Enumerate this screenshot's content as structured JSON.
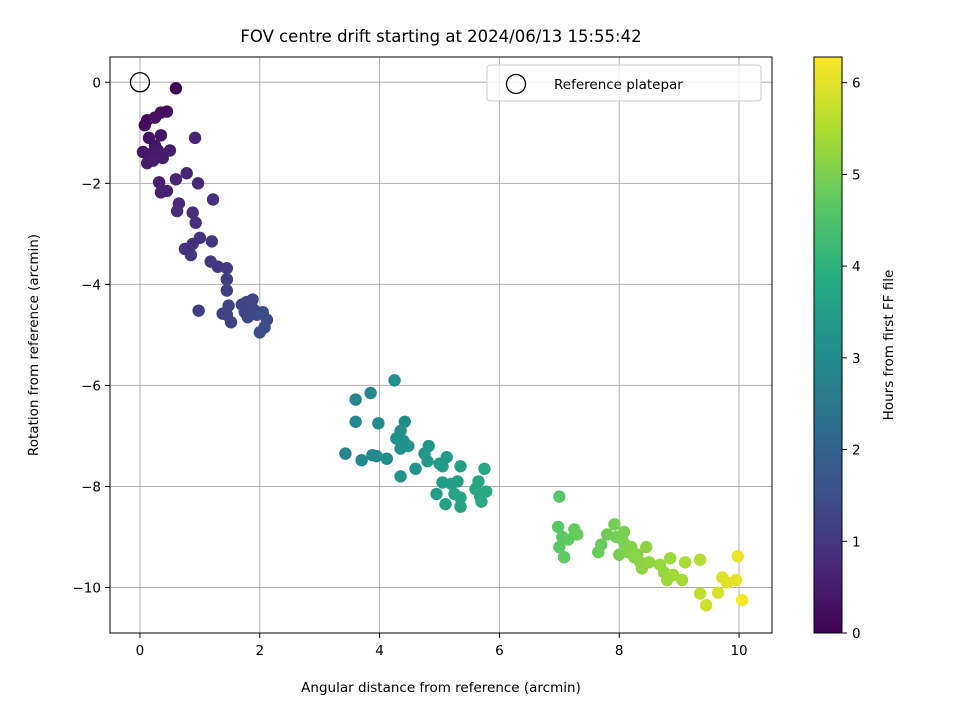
{
  "chart_data": {
    "type": "scatter",
    "title": "FOV centre drift starting at 2024/06/13 15:55:42",
    "xlabel": "Angular distance from reference (arcmin)",
    "ylabel": "Rotation from reference (arcmin)",
    "xlim": [
      -0.5,
      10.55
    ],
    "ylim": [
      -10.9,
      0.5
    ],
    "xticks": [
      0,
      2,
      4,
      6,
      8,
      10
    ],
    "yticks": [
      0,
      -2,
      -4,
      -6,
      -8,
      -10
    ],
    "grid": true,
    "legend": {
      "placement": "top-right",
      "entries": [
        "Reference platepar"
      ]
    },
    "reference_point": {
      "x": 0,
      "y": 0,
      "label": "Reference platepar"
    },
    "colorbar": {
      "label": "Hours from first FF file",
      "range": [
        0,
        6.28
      ],
      "ticks": [
        0,
        1,
        2,
        3,
        4,
        5,
        6
      ],
      "colormap": "viridis"
    },
    "points": [
      {
        "x": 0.6,
        "y": -0.12,
        "c": 0.05
      },
      {
        "x": 0.12,
        "y": -0.75,
        "c": 0.1
      },
      {
        "x": 0.08,
        "y": -0.85,
        "c": 0.15
      },
      {
        "x": 0.35,
        "y": -0.6,
        "c": 0.2
      },
      {
        "x": 0.25,
        "y": -0.7,
        "c": 0.22
      },
      {
        "x": 0.45,
        "y": -0.58,
        "c": 0.25
      },
      {
        "x": 0.15,
        "y": -1.1,
        "c": 0.3
      },
      {
        "x": 0.35,
        "y": -1.05,
        "c": 0.33
      },
      {
        "x": 0.25,
        "y": -1.25,
        "c": 0.35
      },
      {
        "x": 0.05,
        "y": -1.38,
        "c": 0.38
      },
      {
        "x": 0.18,
        "y": -1.42,
        "c": 0.4
      },
      {
        "x": 0.3,
        "y": -1.35,
        "c": 0.42
      },
      {
        "x": 0.12,
        "y": -1.6,
        "c": 0.45
      },
      {
        "x": 0.22,
        "y": -1.55,
        "c": 0.47
      },
      {
        "x": 0.38,
        "y": -1.5,
        "c": 0.5
      },
      {
        "x": 0.5,
        "y": -1.35,
        "c": 0.52
      },
      {
        "x": 0.32,
        "y": -1.98,
        "c": 0.55
      },
      {
        "x": 0.35,
        "y": -2.18,
        "c": 0.58
      },
      {
        "x": 0.45,
        "y": -2.15,
        "c": 0.6
      },
      {
        "x": 0.6,
        "y": -1.92,
        "c": 0.62
      },
      {
        "x": 0.92,
        "y": -1.1,
        "c": 0.65
      },
      {
        "x": 0.78,
        "y": -1.8,
        "c": 0.7
      },
      {
        "x": 0.97,
        "y": -2.0,
        "c": 0.72
      },
      {
        "x": 0.65,
        "y": -2.4,
        "c": 0.75
      },
      {
        "x": 0.62,
        "y": -2.55,
        "c": 0.78
      },
      {
        "x": 0.88,
        "y": -2.58,
        "c": 0.8
      },
      {
        "x": 1.22,
        "y": -2.32,
        "c": 0.82
      },
      {
        "x": 0.93,
        "y": -2.78,
        "c": 0.85
      },
      {
        "x": 0.75,
        "y": -3.3,
        "c": 0.88
      },
      {
        "x": 0.88,
        "y": -3.2,
        "c": 0.9
      },
      {
        "x": 1.0,
        "y": -3.08,
        "c": 0.92
      },
      {
        "x": 0.85,
        "y": -3.42,
        "c": 0.95
      },
      {
        "x": 1.2,
        "y": -3.15,
        "c": 0.98
      },
      {
        "x": 1.18,
        "y": -3.55,
        "c": 1.0
      },
      {
        "x": 1.3,
        "y": -3.65,
        "c": 1.02
      },
      {
        "x": 1.45,
        "y": -3.68,
        "c": 1.05
      },
      {
        "x": 1.45,
        "y": -3.9,
        "c": 1.08
      },
      {
        "x": 1.45,
        "y": -4.12,
        "c": 1.1
      },
      {
        "x": 0.98,
        "y": -4.52,
        "c": 1.12
      },
      {
        "x": 1.38,
        "y": -4.58,
        "c": 1.15
      },
      {
        "x": 1.48,
        "y": -4.42,
        "c": 1.18
      },
      {
        "x": 1.45,
        "y": -4.6,
        "c": 1.2
      },
      {
        "x": 1.52,
        "y": -4.75,
        "c": 1.22
      },
      {
        "x": 1.7,
        "y": -4.4,
        "c": 1.25
      },
      {
        "x": 1.78,
        "y": -4.35,
        "c": 1.28
      },
      {
        "x": 1.88,
        "y": -4.3,
        "c": 1.3
      },
      {
        "x": 1.75,
        "y": -4.55,
        "c": 1.32
      },
      {
        "x": 1.9,
        "y": -4.5,
        "c": 1.35
      },
      {
        "x": 1.8,
        "y": -4.65,
        "c": 1.38
      },
      {
        "x": 1.95,
        "y": -4.6,
        "c": 1.4
      },
      {
        "x": 2.05,
        "y": -4.55,
        "c": 1.42
      },
      {
        "x": 2.12,
        "y": -4.7,
        "c": 1.45
      },
      {
        "x": 2.08,
        "y": -4.85,
        "c": 1.48
      },
      {
        "x": 2.0,
        "y": -4.95,
        "c": 1.5
      },
      {
        "x": 3.43,
        "y": -7.35,
        "c": 2.8
      },
      {
        "x": 3.6,
        "y": -6.28,
        "c": 2.85
      },
      {
        "x": 3.6,
        "y": -6.72,
        "c": 2.88
      },
      {
        "x": 3.85,
        "y": -6.15,
        "c": 2.9
      },
      {
        "x": 3.7,
        "y": -7.48,
        "c": 2.92
      },
      {
        "x": 3.88,
        "y": -7.38,
        "c": 2.95
      },
      {
        "x": 3.95,
        "y": -7.4,
        "c": 2.98
      },
      {
        "x": 3.98,
        "y": -6.75,
        "c": 3.0
      },
      {
        "x": 4.12,
        "y": -7.45,
        "c": 3.02
      },
      {
        "x": 4.25,
        "y": -5.9,
        "c": 3.05
      },
      {
        "x": 4.42,
        "y": -6.72,
        "c": 3.08
      },
      {
        "x": 4.35,
        "y": -6.9,
        "c": 3.1
      },
      {
        "x": 4.28,
        "y": -7.05,
        "c": 3.12
      },
      {
        "x": 4.4,
        "y": -7.1,
        "c": 3.15
      },
      {
        "x": 4.35,
        "y": -7.25,
        "c": 3.18
      },
      {
        "x": 4.48,
        "y": -7.2,
        "c": 3.2
      },
      {
        "x": 4.35,
        "y": -7.8,
        "c": 3.22
      },
      {
        "x": 4.6,
        "y": -7.65,
        "c": 3.25
      },
      {
        "x": 4.75,
        "y": -7.35,
        "c": 3.3
      },
      {
        "x": 4.82,
        "y": -7.2,
        "c": 3.32
      },
      {
        "x": 4.8,
        "y": -7.5,
        "c": 3.35
      },
      {
        "x": 5.0,
        "y": -7.55,
        "c": 3.38
      },
      {
        "x": 5.05,
        "y": -7.6,
        "c": 3.4
      },
      {
        "x": 5.12,
        "y": -7.42,
        "c": 3.42
      },
      {
        "x": 5.05,
        "y": -7.92,
        "c": 3.45
      },
      {
        "x": 4.95,
        "y": -8.15,
        "c": 3.48
      },
      {
        "x": 5.2,
        "y": -7.95,
        "c": 3.5
      },
      {
        "x": 5.3,
        "y": -7.9,
        "c": 3.52
      },
      {
        "x": 5.35,
        "y": -7.6,
        "c": 3.55
      },
      {
        "x": 5.25,
        "y": -8.15,
        "c": 3.58
      },
      {
        "x": 5.1,
        "y": -8.35,
        "c": 3.6
      },
      {
        "x": 5.35,
        "y": -8.22,
        "c": 3.62
      },
      {
        "x": 5.35,
        "y": -8.4,
        "c": 3.65
      },
      {
        "x": 5.6,
        "y": -8.05,
        "c": 3.7
      },
      {
        "x": 5.65,
        "y": -7.9,
        "c": 3.72
      },
      {
        "x": 5.68,
        "y": -8.2,
        "c": 3.75
      },
      {
        "x": 5.78,
        "y": -8.1,
        "c": 3.78
      },
      {
        "x": 5.75,
        "y": -7.65,
        "c": 3.8
      },
      {
        "x": 5.7,
        "y": -8.3,
        "c": 3.82
      },
      {
        "x": 7.0,
        "y": -8.2,
        "c": 4.6
      },
      {
        "x": 6.98,
        "y": -8.8,
        "c": 4.62
      },
      {
        "x": 7.05,
        "y": -9.0,
        "c": 4.65
      },
      {
        "x": 7.0,
        "y": -9.2,
        "c": 4.68
      },
      {
        "x": 7.08,
        "y": -9.4,
        "c": 4.7
      },
      {
        "x": 7.15,
        "y": -9.05,
        "c": 4.72
      },
      {
        "x": 7.25,
        "y": -8.85,
        "c": 4.75
      },
      {
        "x": 7.3,
        "y": -8.95,
        "c": 4.78
      },
      {
        "x": 7.65,
        "y": -9.3,
        "c": 4.82
      },
      {
        "x": 7.7,
        "y": -9.15,
        "c": 4.85
      },
      {
        "x": 7.8,
        "y": -8.95,
        "c": 4.88
      },
      {
        "x": 7.92,
        "y": -8.75,
        "c": 4.9
      },
      {
        "x": 7.95,
        "y": -9.0,
        "c": 4.92
      },
      {
        "x": 8.0,
        "y": -9.35,
        "c": 4.95
      },
      {
        "x": 8.05,
        "y": -9.05,
        "c": 4.98
      },
      {
        "x": 8.08,
        "y": -8.9,
        "c": 5.0
      },
      {
        "x": 8.1,
        "y": -9.15,
        "c": 5.02
      },
      {
        "x": 8.15,
        "y": -9.3,
        "c": 5.05
      },
      {
        "x": 8.25,
        "y": -9.4,
        "c": 5.08
      },
      {
        "x": 8.2,
        "y": -9.2,
        "c": 5.1
      },
      {
        "x": 8.3,
        "y": -9.35,
        "c": 5.12
      },
      {
        "x": 8.35,
        "y": -9.5,
        "c": 5.15
      },
      {
        "x": 8.38,
        "y": -9.62,
        "c": 5.18
      },
      {
        "x": 8.45,
        "y": -9.2,
        "c": 5.2
      },
      {
        "x": 8.5,
        "y": -9.5,
        "c": 5.22
      },
      {
        "x": 8.68,
        "y": -9.55,
        "c": 5.25
      },
      {
        "x": 8.75,
        "y": -9.7,
        "c": 5.28
      },
      {
        "x": 8.8,
        "y": -9.85,
        "c": 5.3
      },
      {
        "x": 8.85,
        "y": -9.42,
        "c": 5.32
      },
      {
        "x": 8.9,
        "y": -9.75,
        "c": 5.35
      },
      {
        "x": 9.05,
        "y": -9.85,
        "c": 5.4
      },
      {
        "x": 9.1,
        "y": -9.5,
        "c": 5.45
      },
      {
        "x": 9.35,
        "y": -9.45,
        "c": 5.55
      },
      {
        "x": 9.35,
        "y": -10.12,
        "c": 5.7
      },
      {
        "x": 9.45,
        "y": -10.35,
        "c": 5.8
      },
      {
        "x": 9.65,
        "y": -10.1,
        "c": 5.9
      },
      {
        "x": 9.72,
        "y": -9.8,
        "c": 5.95
      },
      {
        "x": 9.8,
        "y": -9.9,
        "c": 6.0
      },
      {
        "x": 9.95,
        "y": -9.85,
        "c": 6.05
      },
      {
        "x": 9.98,
        "y": -9.38,
        "c": 6.1
      },
      {
        "x": 10.05,
        "y": -10.25,
        "c": 6.2
      }
    ]
  }
}
